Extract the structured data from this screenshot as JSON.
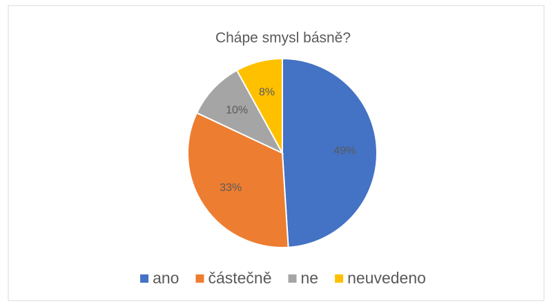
{
  "chart_data": {
    "type": "pie",
    "title": "Chápe smysl básně?",
    "categories": [
      "ano",
      "částečně",
      "ne",
      "neuvedeno"
    ],
    "values": [
      49,
      33,
      10,
      8
    ],
    "value_labels": [
      "49%",
      "33%",
      "10%",
      "8%"
    ],
    "colors": [
      "#4472c4",
      "#ed7d31",
      "#a5a5a5",
      "#ffc000"
    ],
    "legend": "bottom"
  }
}
